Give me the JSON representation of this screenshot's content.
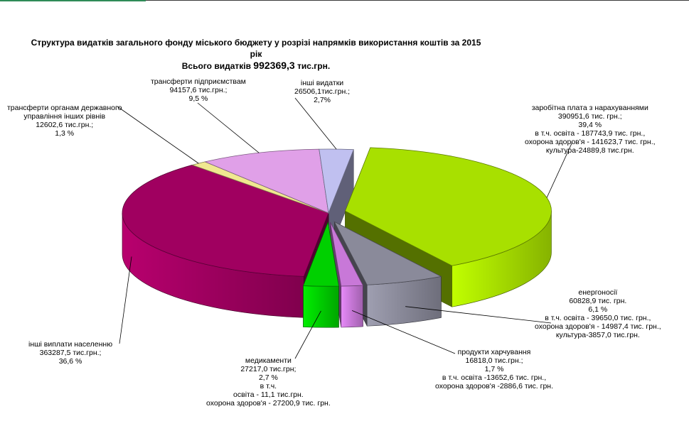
{
  "title": {
    "line1": "Структура видатків загального фонду міського бюджету у розрізі напрямків використання коштів за  2015",
    "line2": "рік",
    "line3_prefix": "Всього видатків ",
    "line3_total": "992369,3",
    "line3_suffix": " тис.грн."
  },
  "chart_data": {
    "type": "pie",
    "title": "Структура видатків загального фонду міського бюджету у розрізі напрямків використання коштів за 2015 рік",
    "subtitle": "Всього видатків 992369,3 тис.грн.",
    "total": 992369.3,
    "unit": "тис.грн.",
    "slices": [
      {
        "name": "заробітна плата з нарахуваннями",
        "value": 390951.6,
        "percent": 39.4,
        "color": "#a8e000",
        "exploded": true
      },
      {
        "name": "енергоносії",
        "value": 60828.9,
        "percent": 6.1,
        "color": "#8a8a9a",
        "exploded": true
      },
      {
        "name": "продукти харчування",
        "value": 16818.0,
        "percent": 1.7,
        "color": "#c878d8",
        "exploded": true
      },
      {
        "name": "медикаменти",
        "value": 27217.0,
        "percent": 2.7,
        "color": "#00d000",
        "exploded": true
      },
      {
        "name": "інші виплати населенню",
        "value": 363287.5,
        "percent": 36.6,
        "color": "#a00060",
        "exploded": false
      },
      {
        "name": "трансферти органам державного управління інших рівнів",
        "value": 12602.6,
        "percent": 1.3,
        "color": "#f0e890",
        "exploded": false
      },
      {
        "name": "трансферти підприємствам",
        "value": 94157.6,
        "percent": 9.5,
        "color": "#e0a0e8",
        "exploded": false
      },
      {
        "name": "інші видатки",
        "value": 26506.1,
        "percent": 2.7,
        "color": "#c0c0f0",
        "exploded": false
      }
    ]
  },
  "labels": {
    "salary": [
      "заробітна плата з нарахуваннями",
      "390951,6 тис. грн.;",
      "39,4 %",
      "в т.ч. освіта - 187743,9 тис. грн.,",
      "охорона здоров'я - 141623,7  тис. грн.,",
      "культура-24889,8 тис.грн."
    ],
    "energy": [
      "енергоносії",
      "60828,9  тис. грн.",
      "6,1 %",
      "в т.ч. освіта - 39650,0 тис. грн.,",
      "охорона здоров'я - 14987,4 тис. грн.,",
      "культура-3857,0 тис.грн."
    ],
    "food": [
      "продукти харчування",
      "16818,0 тис.грн.;",
      "1,7 %",
      "в т.ч. освіта -13652,6 тис. грн.,",
      "охорона здоров'я -2886,6 тис. грн."
    ],
    "meds": [
      "медикаменти",
      "27217,0 тис.грн;",
      "2,7 %",
      "в т.ч.",
      "освіта - 11,1 тис.грн.",
      "охорона здоров'я - 27200,9 тис. грн."
    ],
    "other_pay": [
      "інші виплати населенню",
      "363287,5 тис.грн.;",
      "36,6 %"
    ],
    "gov_transfers": [
      "трансферти органам державного",
      "управління інших рівнів",
      "12602,6 тис.грн.;",
      "1,3 %"
    ],
    "ent_transfers": [
      "трансферти підприємствам",
      "94157,6 тис.грн.;",
      "9,5 %"
    ],
    "other": [
      "інші видатки",
      "26506,1тис.грн.;",
      "2,7%"
    ]
  }
}
